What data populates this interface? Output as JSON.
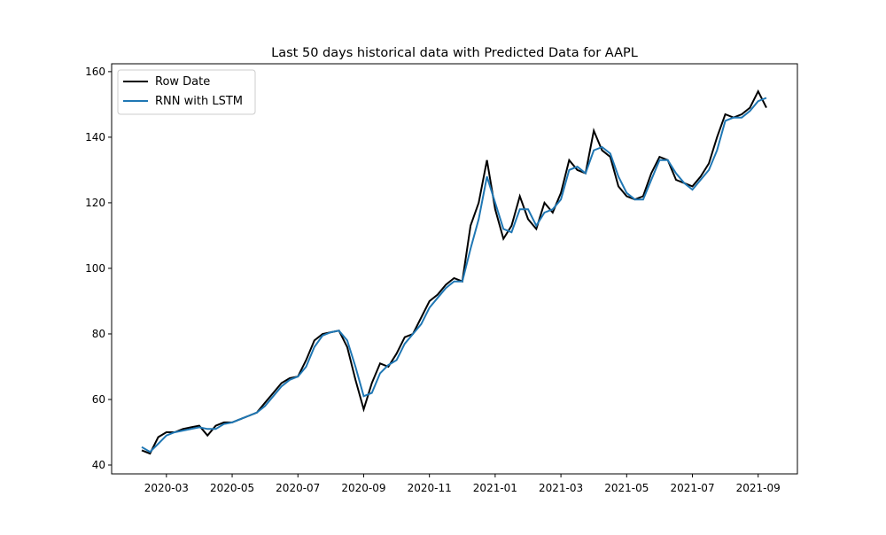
{
  "chart_data": {
    "type": "line",
    "title": "Last 50 days historical data with Predicted Data for AAPL",
    "x": [
      "2020-02",
      "2020-02",
      "2020-02",
      "2020-03",
      "2020-03",
      "2020-03",
      "2020-03",
      "2020-04",
      "2020-04",
      "2020-04",
      "2020-04",
      "2020-05",
      "2020-05",
      "2020-05",
      "2020-05",
      "2020-06",
      "2020-06",
      "2020-06",
      "2020-06",
      "2020-07",
      "2020-07",
      "2020-07",
      "2020-07",
      "2020-08",
      "2020-08",
      "2020-08",
      "2020-08",
      "2020-09",
      "2020-09",
      "2020-09",
      "2020-09",
      "2020-10",
      "2020-10",
      "2020-10",
      "2020-10",
      "2020-11",
      "2020-11",
      "2020-11",
      "2020-11",
      "2020-12",
      "2020-12",
      "2020-12",
      "2020-12",
      "2021-01",
      "2021-01",
      "2021-01",
      "2021-01",
      "2021-02",
      "2021-02",
      "2021-02",
      "2021-02",
      "2021-03",
      "2021-03",
      "2021-03",
      "2021-03",
      "2021-04",
      "2021-04",
      "2021-04",
      "2021-04",
      "2021-05",
      "2021-05",
      "2021-05",
      "2021-05",
      "2021-06",
      "2021-06",
      "2021-06",
      "2021-06",
      "2021-07",
      "2021-07",
      "2021-07",
      "2021-07",
      "2021-08",
      "2021-08",
      "2021-08",
      "2021-08",
      "2021-09",
      "2021-09"
    ],
    "series": [
      {
        "name": "Row Date",
        "color": "#000000",
        "values": [
          44.5,
          43.5,
          48.5,
          50,
          50,
          51,
          51.5,
          52,
          49,
          52,
          53,
          53,
          54,
          55,
          56,
          59,
          62,
          65,
          66.5,
          67,
          72,
          78,
          80,
          80.5,
          81,
          76,
          66,
          57,
          65,
          71,
          70,
          74,
          79,
          80,
          85,
          90,
          92,
          95,
          97,
          96,
          113,
          120,
          133,
          118,
          109,
          113,
          122,
          115,
          112,
          120,
          117,
          123,
          133,
          130,
          129,
          142,
          136,
          134,
          125,
          122,
          121,
          122,
          129,
          134,
          133,
          127,
          126,
          125,
          128,
          132,
          140,
          147,
          146,
          147,
          149,
          154,
          149
        ]
      },
      {
        "name": "RNN with LSTM",
        "color": "#1f77b4",
        "values": [
          45.5,
          44,
          46.5,
          49,
          50,
          50.5,
          51,
          51.5,
          51,
          51,
          52.5,
          53,
          54,
          55,
          56,
          58,
          61,
          64,
          66,
          67,
          70,
          76,
          79.5,
          80.5,
          81,
          78,
          70,
          61,
          62,
          68,
          70.5,
          72,
          77,
          80,
          83,
          88,
          91,
          94,
          96,
          96,
          106,
          115,
          128,
          120,
          112,
          111,
          118,
          118,
          113,
          117,
          118,
          121,
          130,
          131,
          129,
          136,
          137,
          135,
          128,
          123,
          121,
          121,
          127,
          133,
          133,
          129,
          126,
          124,
          127,
          130,
          136,
          145,
          146,
          146,
          148,
          151,
          152
        ]
      }
    ],
    "xticks": [
      "2020-03",
      "2020-05",
      "2020-07",
      "2020-09",
      "2020-11",
      "2021-01",
      "2021-03",
      "2021-05",
      "2021-07",
      "2021-09"
    ],
    "ylim": [
      37.3,
      162.4
    ],
    "yticks": [
      40,
      60,
      80,
      100,
      120,
      140,
      160
    ],
    "legend": "upper left"
  }
}
